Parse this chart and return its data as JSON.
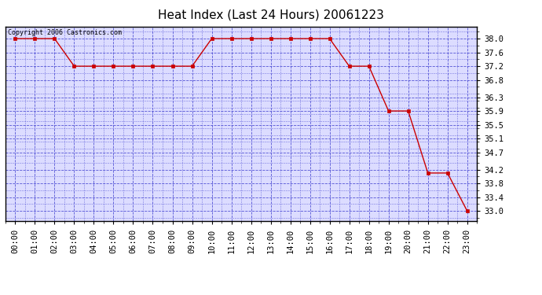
{
  "title": "Heat Index (Last 24 Hours) 20061223",
  "copyright_text": "Copyright 2006 Castronics.com",
  "hours": [
    "00:00",
    "01:00",
    "02:00",
    "03:00",
    "04:00",
    "05:00",
    "06:00",
    "07:00",
    "08:00",
    "09:00",
    "10:00",
    "11:00",
    "12:00",
    "13:00",
    "14:00",
    "15:00",
    "16:00",
    "17:00",
    "18:00",
    "19:00",
    "20:00",
    "21:00",
    "22:00",
    "23:00"
  ],
  "values": [
    38.0,
    38.0,
    38.0,
    37.2,
    37.2,
    37.2,
    37.2,
    37.2,
    37.2,
    37.2,
    38.0,
    38.0,
    38.0,
    38.0,
    38.0,
    38.0,
    38.0,
    37.2,
    37.2,
    35.9,
    35.9,
    34.1,
    34.1,
    33.0
  ],
  "ylim": [
    32.7,
    38.35
  ],
  "yticks": [
    33.0,
    33.4,
    33.8,
    34.2,
    34.7,
    35.1,
    35.5,
    35.9,
    36.3,
    36.8,
    37.2,
    37.6,
    38.0
  ],
  "line_color": "#cc0000",
  "marker_color": "#cc0000",
  "bg_color": "#ffffff",
  "plot_bg_color": "#dcdcff",
  "grid_color": "#3333cc",
  "title_fontsize": 11,
  "tick_fontsize": 7.5,
  "copyright_fontsize": 6
}
